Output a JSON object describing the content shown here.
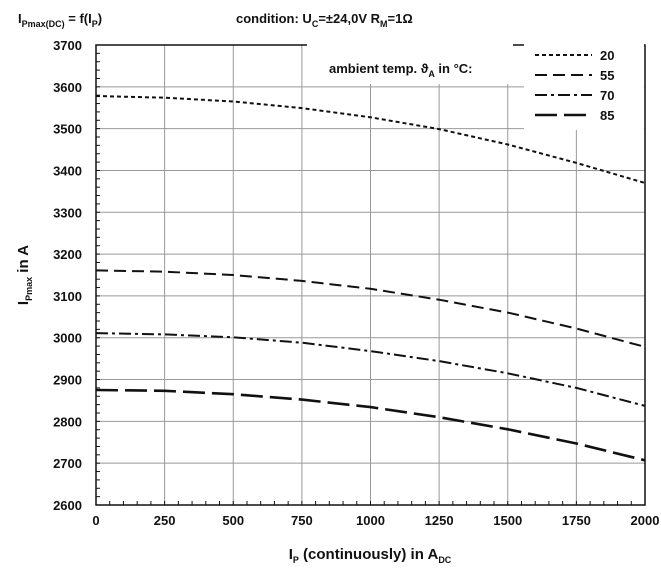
{
  "header": {
    "formula": {
      "main": "I",
      "sub": "Pmax(DC)",
      "mid": " = f(I",
      "sub2": "P",
      "end": ")"
    },
    "condition": {
      "text": "condition:  U",
      "sub": "C",
      "mid": "=±24,0V   R",
      "sub2": "M",
      "end": "=1Ω"
    }
  },
  "legend": {
    "title": {
      "text": "ambient temp. ϑ",
      "sub": "A",
      "end": " in °C:"
    },
    "placement": "top-right"
  },
  "chart_data": {
    "type": "line",
    "xlabel": {
      "main": "I",
      "sub": "P",
      "mid": " (continuously) in A",
      "sub2": "DC"
    },
    "ylabel": {
      "main": "I",
      "sub": "Pmax",
      "end": " in A"
    },
    "xlim": [
      0,
      2000
    ],
    "ylim": [
      2600,
      3700
    ],
    "xticks": [
      0,
      250,
      500,
      750,
      1000,
      1250,
      1500,
      1750,
      2000
    ],
    "yticks": [
      2600,
      2700,
      2800,
      2900,
      3000,
      3100,
      3200,
      3300,
      3400,
      3500,
      3600,
      3700
    ],
    "grid": true,
    "x": [
      0,
      250,
      500,
      750,
      1000,
      1250,
      1500,
      1750,
      2000
    ],
    "series": [
      {
        "name": "20",
        "dash": "4,3",
        "width": 2,
        "values": [
          3578,
          3574,
          3565,
          3549,
          3527,
          3499,
          3462,
          3418,
          3370
        ]
      },
      {
        "name": "55",
        "dash": "12,6",
        "width": 2,
        "values": [
          3161,
          3158,
          3150,
          3136,
          3117,
          3091,
          3060,
          3022,
          2978
        ]
      },
      {
        "name": "70",
        "dash": "12,4,3,4",
        "width": 2,
        "values": [
          3011,
          3008,
          3001,
          2988,
          2968,
          2944,
          2915,
          2880,
          2837
        ]
      },
      {
        "name": "85",
        "dash": "22,7",
        "width": 2.6,
        "values": [
          2875,
          2873,
          2865,
          2852,
          2834,
          2810,
          2781,
          2747,
          2707
        ]
      }
    ]
  }
}
